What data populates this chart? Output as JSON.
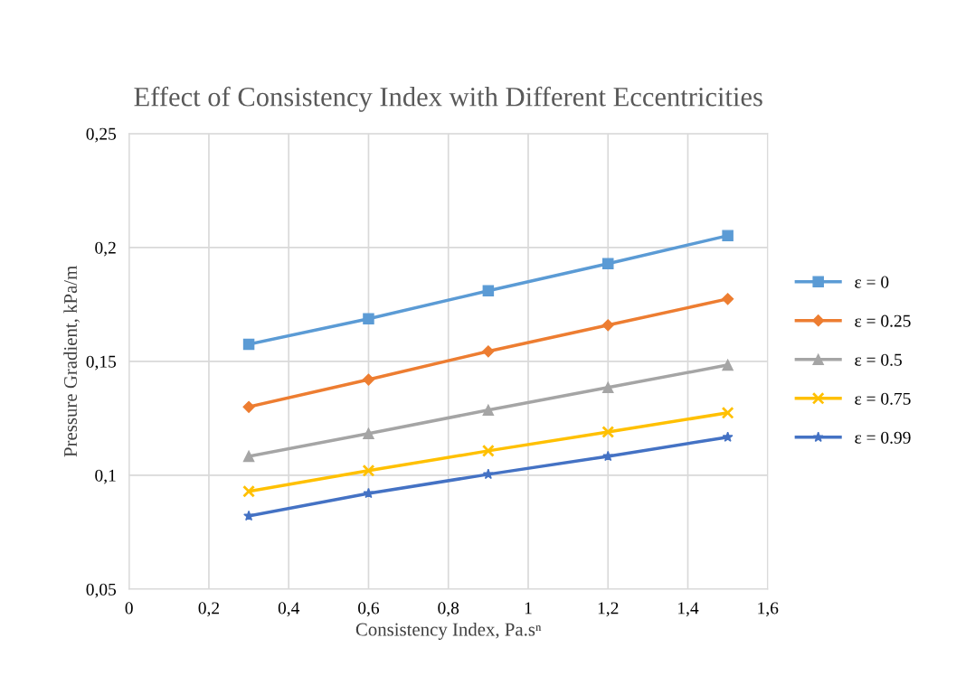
{
  "chart_data": {
    "type": "line",
    "title": "Effect of Consistency Index with Different Eccentricities",
    "xlabel": "Consistency Index, Pa.sⁿ",
    "ylabel": "Pressure Gradient, kPa/m",
    "x": [
      0.3,
      0.6,
      0.9,
      1.2,
      1.5
    ],
    "series": [
      {
        "name": "ε = 0",
        "color": "#5b9bd5",
        "marker": "square",
        "values": [
          0.1575,
          0.1687,
          0.181,
          0.1929,
          0.2052
        ]
      },
      {
        "name": "ε = 0.25",
        "color": "#ed7d31",
        "marker": "diamond",
        "values": [
          0.13,
          0.142,
          0.1544,
          0.1659,
          0.1774
        ]
      },
      {
        "name": "ε = 0.5",
        "color": "#a5a5a5",
        "marker": "triangle",
        "values": [
          0.1083,
          0.1183,
          0.1286,
          0.1385,
          0.1484
        ]
      },
      {
        "name": "ε = 0.75",
        "color": "#ffc000",
        "marker": "cross",
        "values": [
          0.0929,
          0.102,
          0.1107,
          0.119,
          0.1274
        ]
      },
      {
        "name": "ε = 0.99",
        "color": "#4472c4",
        "marker": "star",
        "values": [
          0.0821,
          0.092,
          0.1004,
          0.1083,
          0.1167
        ]
      }
    ],
    "xlim": [
      0,
      1.6
    ],
    "xticks": [
      0,
      {
        "value": 0.2,
        "label": "0,2"
      },
      {
        "value": 0.4,
        "label": "0,4"
      },
      {
        "value": 0.6,
        "label": "0,6"
      },
      {
        "value": 0.8,
        "label": "0,8"
      },
      1,
      {
        "value": 1.2,
        "label": "1,2"
      },
      {
        "value": 1.4,
        "label": "1,4"
      },
      {
        "value": 1.6,
        "label": "1,6"
      }
    ],
    "ylim": [
      0.05,
      0.25
    ],
    "yticks": [
      {
        "value": 0.05,
        "label": "0,05"
      },
      {
        "value": 0.1,
        "label": "0,1"
      },
      {
        "value": 0.15,
        "label": "0,15"
      },
      {
        "value": 0.2,
        "label": "0,2"
      },
      {
        "value": 0.25,
        "label": "0,25"
      }
    ],
    "grid": true,
    "legend": "right",
    "line_style": "solid"
  }
}
